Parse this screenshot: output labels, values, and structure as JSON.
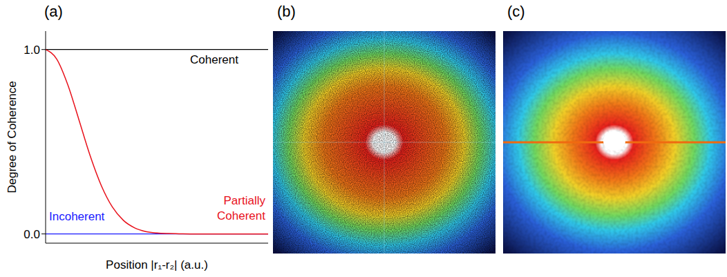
{
  "chart_data": [
    {
      "type": "line",
      "title": "(a)",
      "x_label": "Position |r₁-r₂| (a.u.)",
      "y_label": "Degree of Coherence",
      "x": [
        0,
        0.05,
        0.1,
        0.15,
        0.2,
        0.25,
        0.3,
        0.35,
        0.4,
        0.45,
        0.5,
        0.55,
        0.6,
        0.65,
        0.7,
        0.75,
        0.8,
        0.85,
        0.9,
        0.95,
        1.0
      ],
      "series": [
        {
          "name": "Coherent",
          "color": "#000000",
          "values": [
            1,
            1,
            1,
            1,
            1,
            1,
            1,
            1,
            1,
            1,
            1,
            1,
            1,
            1,
            1,
            1,
            1,
            1,
            1,
            1,
            1
          ]
        },
        {
          "name": "Incoherent",
          "color": "#1a1aff",
          "values": [
            0,
            0,
            0,
            0,
            0,
            0,
            0,
            0,
            0,
            0,
            0,
            0,
            0,
            0,
            0,
            0,
            0,
            0,
            0,
            0,
            0
          ]
        },
        {
          "name": "Partially Coherent",
          "color": "#e8101a",
          "values": [
            1,
            0.948,
            0.808,
            0.618,
            0.425,
            0.263,
            0.146,
            0.073,
            0.033,
            0.013,
            0.005,
            0.002,
            0.001,
            0,
            0,
            0,
            0,
            0,
            0,
            0,
            0
          ]
        }
      ],
      "xlim": [
        0,
        1
      ],
      "ylim": [
        -0.05,
        1.1
      ],
      "yticks": [
        {
          "value": 0,
          "label": "0.0"
        },
        {
          "value": 1,
          "label": "1.0"
        }
      ],
      "tick_labels": "y",
      "grid": false
    },
    {
      "type": "image",
      "title": "(b)"
    },
    {
      "type": "image",
      "title": "(c)"
    }
  ]
}
